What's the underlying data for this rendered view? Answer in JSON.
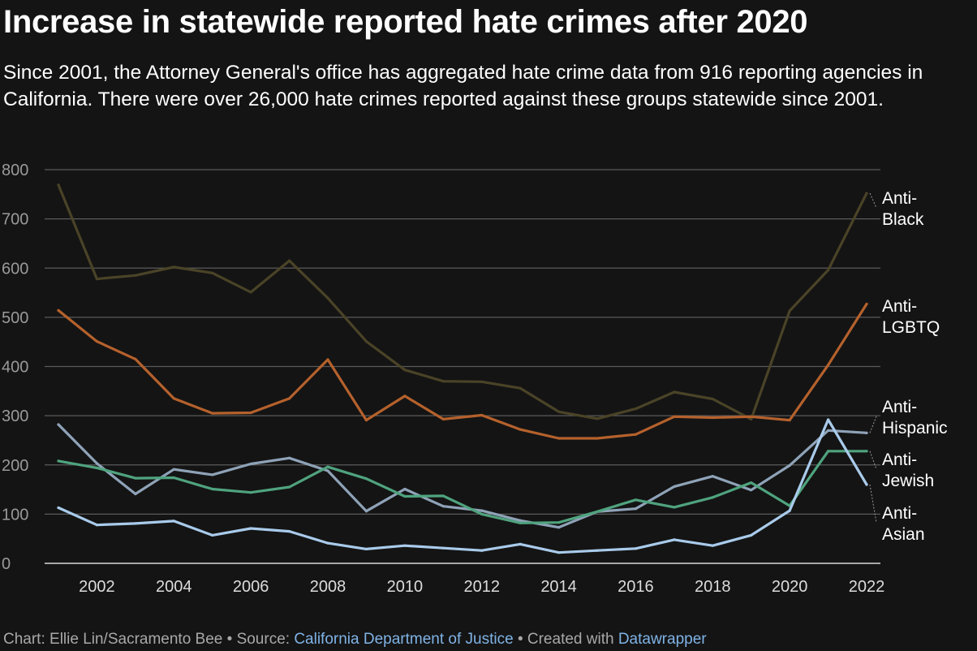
{
  "title": "Increase in statewide reported hate crimes after 2020",
  "subtitle": "Since 2001, the Attorney General's office has aggregated hate crime data from 916 reporting agencies in California. There were over 26,000 hate crimes reported against these groups statewide since 2001.",
  "notes": {
    "chart_prefix": "Chart: Ellie Lin/Sacramento Bee • Source: ",
    "source_link": "California Department of Justice",
    "middle": " • Created with ",
    "tool_link": "Datawrapper"
  },
  "chart_data": {
    "type": "line",
    "title": "Increase in statewide reported hate crimes after 2020",
    "xlabel": "",
    "ylabel": "",
    "ylim": [
      0,
      800
    ],
    "xlim": [
      2001,
      2022
    ],
    "grid": true,
    "y_ticks": [
      "0",
      "100",
      "200",
      "300",
      "400",
      "500",
      "600",
      "700",
      "800"
    ],
    "x_ticks": [
      "2002",
      "2004",
      "2006",
      "2008",
      "2010",
      "2012",
      "2014",
      "2016",
      "2018",
      "2020",
      "2022"
    ],
    "x": [
      2001,
      2002,
      2003,
      2004,
      2005,
      2006,
      2007,
      2008,
      2009,
      2010,
      2011,
      2012,
      2013,
      2014,
      2015,
      2016,
      2017,
      2018,
      2019,
      2020,
      2021,
      2022
    ],
    "series": [
      {
        "name": "Anti-Black",
        "label_lines": [
          "Anti-",
          "Black"
        ],
        "color": "#4a4327",
        "values": [
          769,
          578,
          585,
          602,
          590,
          551,
          615,
          539,
          451,
          393,
          370,
          369,
          356,
          308,
          294,
          314,
          348,
          334,
          293,
          513,
          596,
          752
        ]
      },
      {
        "name": "Anti-LGBTQ",
        "label_lines": [
          "Anti-",
          "LGBTQ"
        ],
        "color": "#b5612c",
        "values": [
          514,
          451,
          415,
          335,
          305,
          306,
          335,
          414,
          291,
          340,
          293,
          301,
          272,
          254,
          254,
          262,
          298,
          296,
          298,
          291,
          403,
          527
        ]
      },
      {
        "name": "Anti-Hispanic",
        "label_lines": [
          "Anti-",
          "Hispanic"
        ],
        "color": "#8fa3b8",
        "values": [
          282,
          203,
          141,
          191,
          180,
          202,
          214,
          188,
          106,
          151,
          116,
          107,
          87,
          73,
          105,
          111,
          156,
          177,
          149,
          199,
          270,
          265
        ]
      },
      {
        "name": "Anti-Jewish",
        "label_lines": [
          "Anti-",
          "Jewish"
        ],
        "color": "#4fa37e",
        "values": [
          208,
          194,
          173,
          174,
          151,
          144,
          155,
          196,
          172,
          136,
          137,
          100,
          82,
          83,
          105,
          129,
          114,
          134,
          164,
          117,
          228,
          228
        ]
      },
      {
        "name": "Anti-Asian",
        "label_lines": [
          "Anti-",
          "Asian"
        ],
        "color": "#a9cbeb",
        "values": [
          113,
          78,
          81,
          86,
          57,
          71,
          65,
          41,
          29,
          36,
          31,
          26,
          39,
          22,
          26,
          30,
          48,
          36,
          57,
          107,
          292,
          160
        ]
      }
    ]
  }
}
